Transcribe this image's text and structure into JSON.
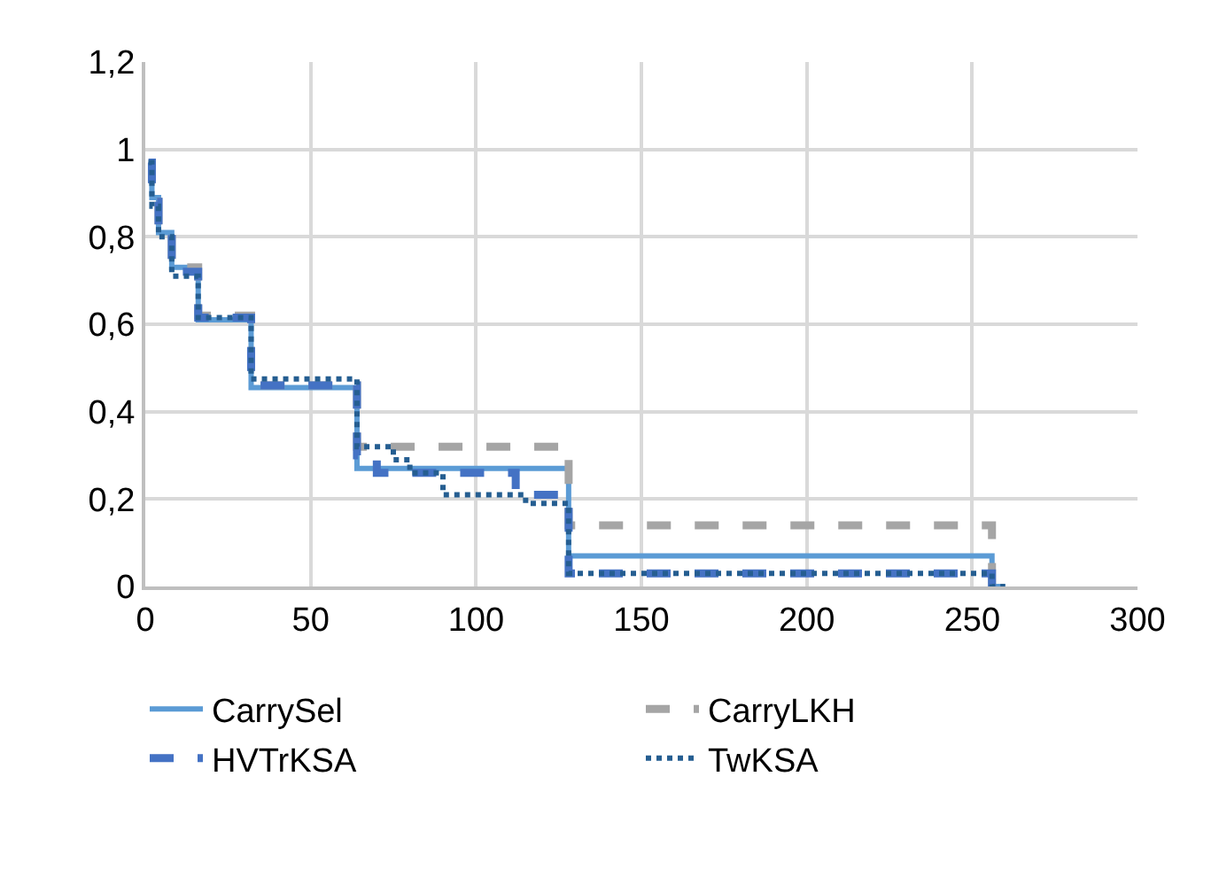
{
  "chart_data": {
    "type": "step",
    "xlim": [
      0,
      300
    ],
    "ylim": [
      0,
      1.2
    ],
    "xticks": [
      0,
      50,
      100,
      150,
      200,
      250,
      300
    ],
    "yticks": [
      0,
      {
        "value": 0.2,
        "label": "0,2"
      },
      {
        "value": 0.4,
        "label": "0,4"
      },
      {
        "value": 0.6,
        "label": "0,6"
      },
      {
        "value": 0.8,
        "label": "0,8"
      },
      1,
      {
        "value": 1.2,
        "label": "1,2"
      }
    ],
    "grid": true,
    "legend": "bottom",
    "marker": "none",
    "series": [
      {
        "name": "CarrySel",
        "color": "#5b9bd5",
        "line_style": "solid",
        "x": [
          1,
          2,
          4,
          8,
          16,
          32,
          64,
          128,
          256,
          260
        ],
        "values": [
          0.97,
          0.89,
          0.81,
          0.73,
          0.61,
          0.455,
          0.27,
          0.07,
          0,
          0
        ]
      },
      {
        "name": "CarryLKH",
        "color": "#a5a5a5",
        "line_style": "dashed",
        "x": [
          1,
          2,
          4,
          8,
          16,
          32,
          64,
          128,
          256,
          260
        ],
        "values": [
          0.97,
          0.88,
          0.81,
          0.73,
          0.62,
          0.46,
          0.32,
          0.14,
          0,
          0
        ]
      },
      {
        "name": "HVTrKSA",
        "color": "#4472c4",
        "line_style": "dashed",
        "x": [
          1,
          2,
          4,
          8,
          16,
          32,
          64,
          70,
          112,
          128,
          256,
          260
        ],
        "values": [
          0.97,
          0.88,
          0.81,
          0.72,
          0.615,
          0.46,
          0.3,
          0.26,
          0.21,
          0.03,
          0,
          0
        ]
      },
      {
        "name": "TwKSA",
        "color": "#255e91",
        "line_style": "dotted",
        "x": [
          1,
          2,
          4,
          8,
          16,
          32,
          64,
          75,
          80,
          90,
          115,
          128,
          256,
          260
        ],
        "values": [
          0.97,
          0.87,
          0.8,
          0.71,
          0.615,
          0.475,
          0.32,
          0.29,
          0.26,
          0.21,
          0.19,
          0.03,
          0,
          0
        ]
      }
    ]
  }
}
